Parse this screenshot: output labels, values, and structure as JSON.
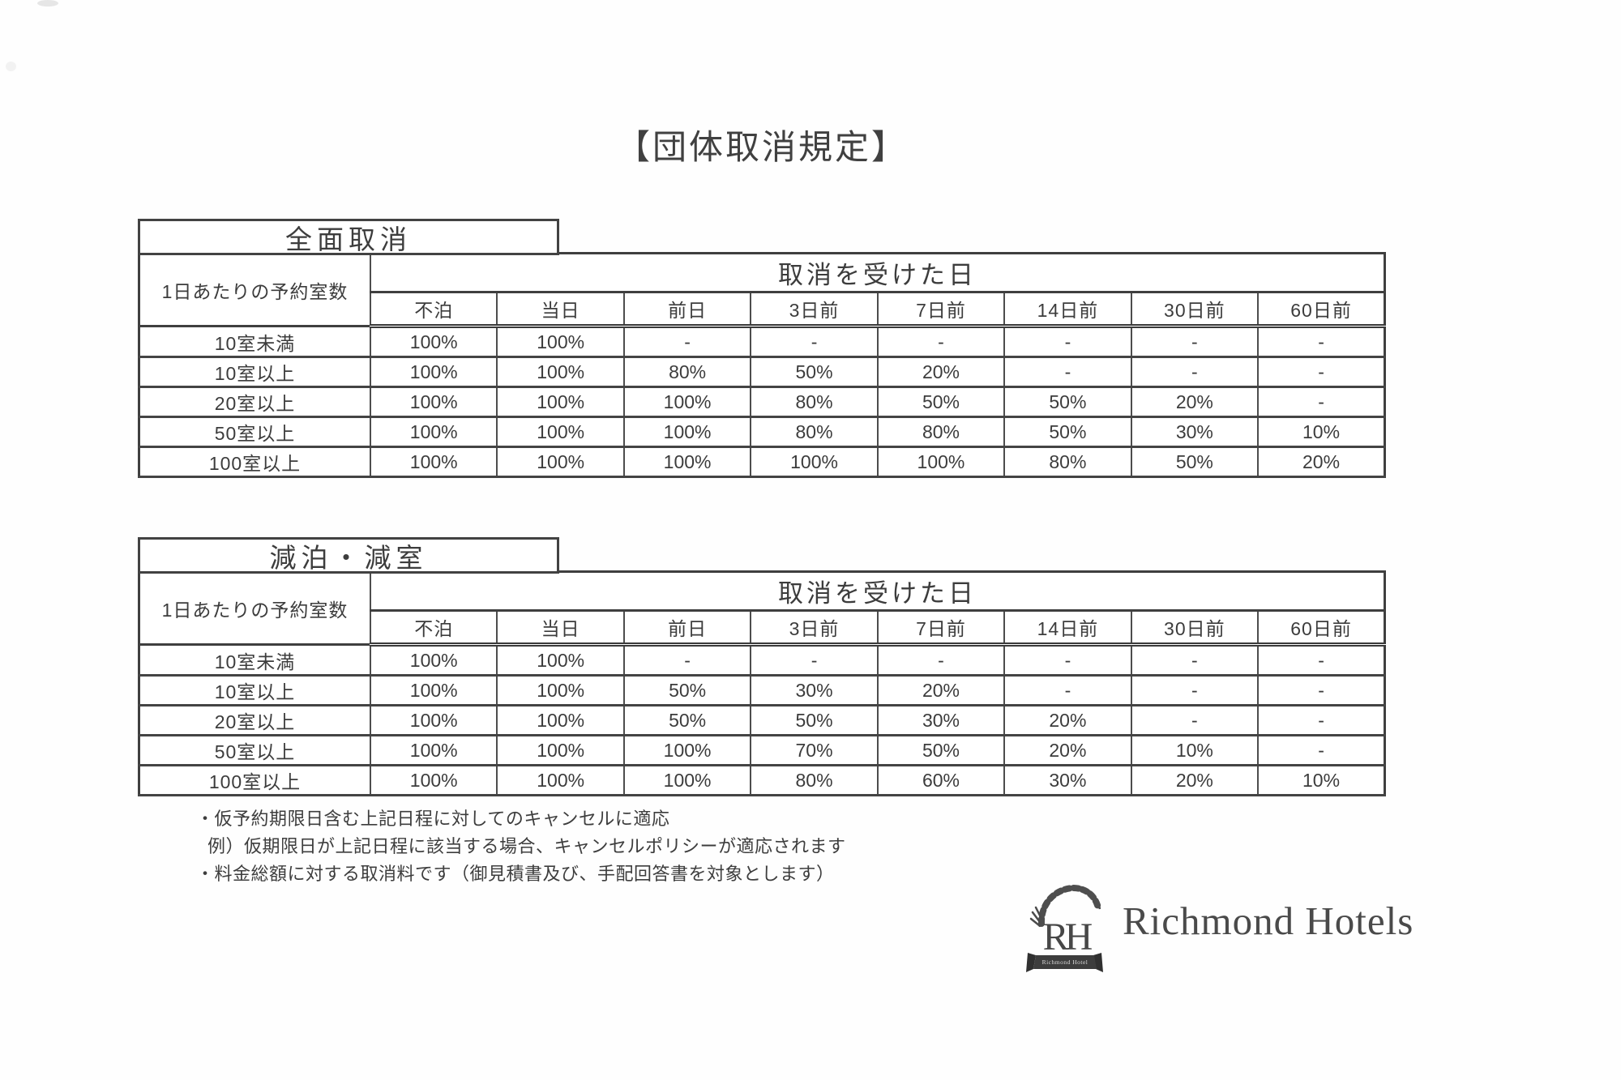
{
  "page": {
    "title": "【団体取消規定】",
    "notes": [
      "・仮予約期限日含む上記日程に対してのキャンセルに適応",
      "例）仮期限日が上記日程に該当する場合、キャンセルポリシーが適応されます",
      "・料金総額に対する取消料です（御見積書及び、手配回答書を対象とします）"
    ]
  },
  "colors": {
    "ink": "#3c3c3c",
    "border": "#424242",
    "paper": "#fefefe"
  },
  "tables": [
    {
      "tab_label": "全面取消",
      "row_header_label": "1日あたりの予約室数",
      "span_header": "取消を受けた日",
      "columns": [
        "不泊",
        "当日",
        "前日",
        "3日前",
        "7日前",
        "14日前",
        "30日前",
        "60日前"
      ],
      "rows": [
        {
          "label": "10室未満",
          "values": [
            "100%",
            "100%",
            "-",
            "-",
            "-",
            "-",
            "-",
            "-"
          ]
        },
        {
          "label": "10室以上",
          "values": [
            "100%",
            "100%",
            "80%",
            "50%",
            "20%",
            "-",
            "-",
            "-"
          ]
        },
        {
          "label": "20室以上",
          "values": [
            "100%",
            "100%",
            "100%",
            "80%",
            "50%",
            "50%",
            "20%",
            "-"
          ]
        },
        {
          "label": "50室以上",
          "values": [
            "100%",
            "100%",
            "100%",
            "80%",
            "80%",
            "50%",
            "30%",
            "10%"
          ]
        },
        {
          "label": "100室以上",
          "values": [
            "100%",
            "100%",
            "100%",
            "100%",
            "100%",
            "80%",
            "50%",
            "20%"
          ]
        }
      ]
    },
    {
      "tab_label": "減泊・減室",
      "row_header_label": "1日あたりの予約室数",
      "span_header": "取消を受けた日",
      "columns": [
        "不泊",
        "当日",
        "前日",
        "3日前",
        "7日前",
        "14日前",
        "30日前",
        "60日前"
      ],
      "rows": [
        {
          "label": "10室未満",
          "values": [
            "100%",
            "100%",
            "-",
            "-",
            "-",
            "-",
            "-",
            "-"
          ]
        },
        {
          "label": "10室以上",
          "values": [
            "100%",
            "100%",
            "50%",
            "30%",
            "20%",
            "-",
            "-",
            "-"
          ]
        },
        {
          "label": "20室以上",
          "values": [
            "100%",
            "100%",
            "50%",
            "50%",
            "30%",
            "20%",
            "-",
            "-"
          ]
        },
        {
          "label": "50室以上",
          "values": [
            "100%",
            "100%",
            "100%",
            "70%",
            "50%",
            "20%",
            "10%",
            "-"
          ]
        },
        {
          "label": "100室以上",
          "values": [
            "100%",
            "100%",
            "100%",
            "80%",
            "60%",
            "30%",
            "20%",
            "10%"
          ]
        }
      ]
    }
  ],
  "logo": {
    "monogram": "RH",
    "banner_text": "Richmond Hotel",
    "brand_name": "Richmond Hotels"
  }
}
